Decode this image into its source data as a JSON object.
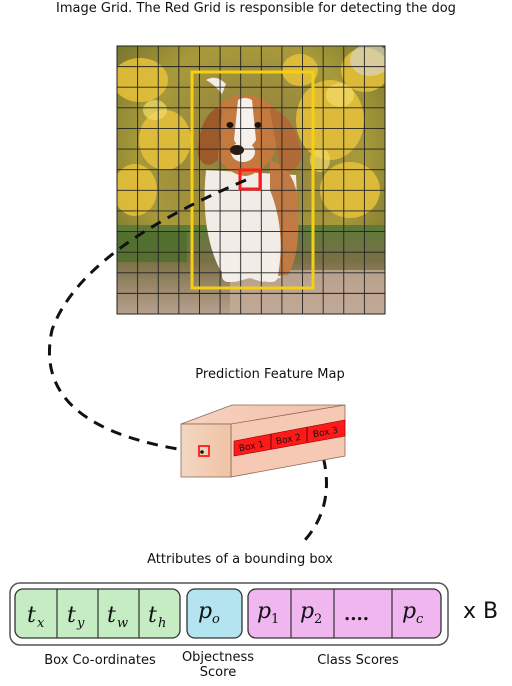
{
  "title": "Image Grid. The Red Grid is responsible for detecting the dog",
  "image": {
    "subject": "dog-photo",
    "grid_rows": 13,
    "grid_cols": 13
  },
  "feature_map": {
    "label": "Prediction Feature Map",
    "boxes": [
      "Box 1",
      "Box 2",
      "Box 3"
    ]
  },
  "attributes": {
    "label": "Attributes of a bounding box",
    "multiplier": "x B",
    "box_coordinates": {
      "caption": "Box Co-ordinates",
      "cells": [
        {
          "base": "t",
          "sub": "x"
        },
        {
          "base": "t",
          "sub": "y"
        },
        {
          "base": "t",
          "sub": "w"
        },
        {
          "base": "t",
          "sub": "h"
        }
      ]
    },
    "objectness": {
      "caption_line1": "Objectness",
      "caption_line2": "Score",
      "cell": {
        "base": "p",
        "sub": "o"
      }
    },
    "class_scores": {
      "caption": "Class Scores",
      "cells": [
        {
          "base": "p",
          "sub": "1"
        },
        {
          "base": "p",
          "sub": "2"
        },
        {
          "base": "....",
          "sub": ""
        },
        {
          "base": "p",
          "sub": "c"
        }
      ]
    }
  },
  "colors": {
    "green": "#c6ecc3",
    "blue": "#b3e4ef",
    "pink": "#f0b6ef",
    "red": "#ff1a1a",
    "yellow": "#f5cf14",
    "box_skin": "#f5c9b4"
  }
}
